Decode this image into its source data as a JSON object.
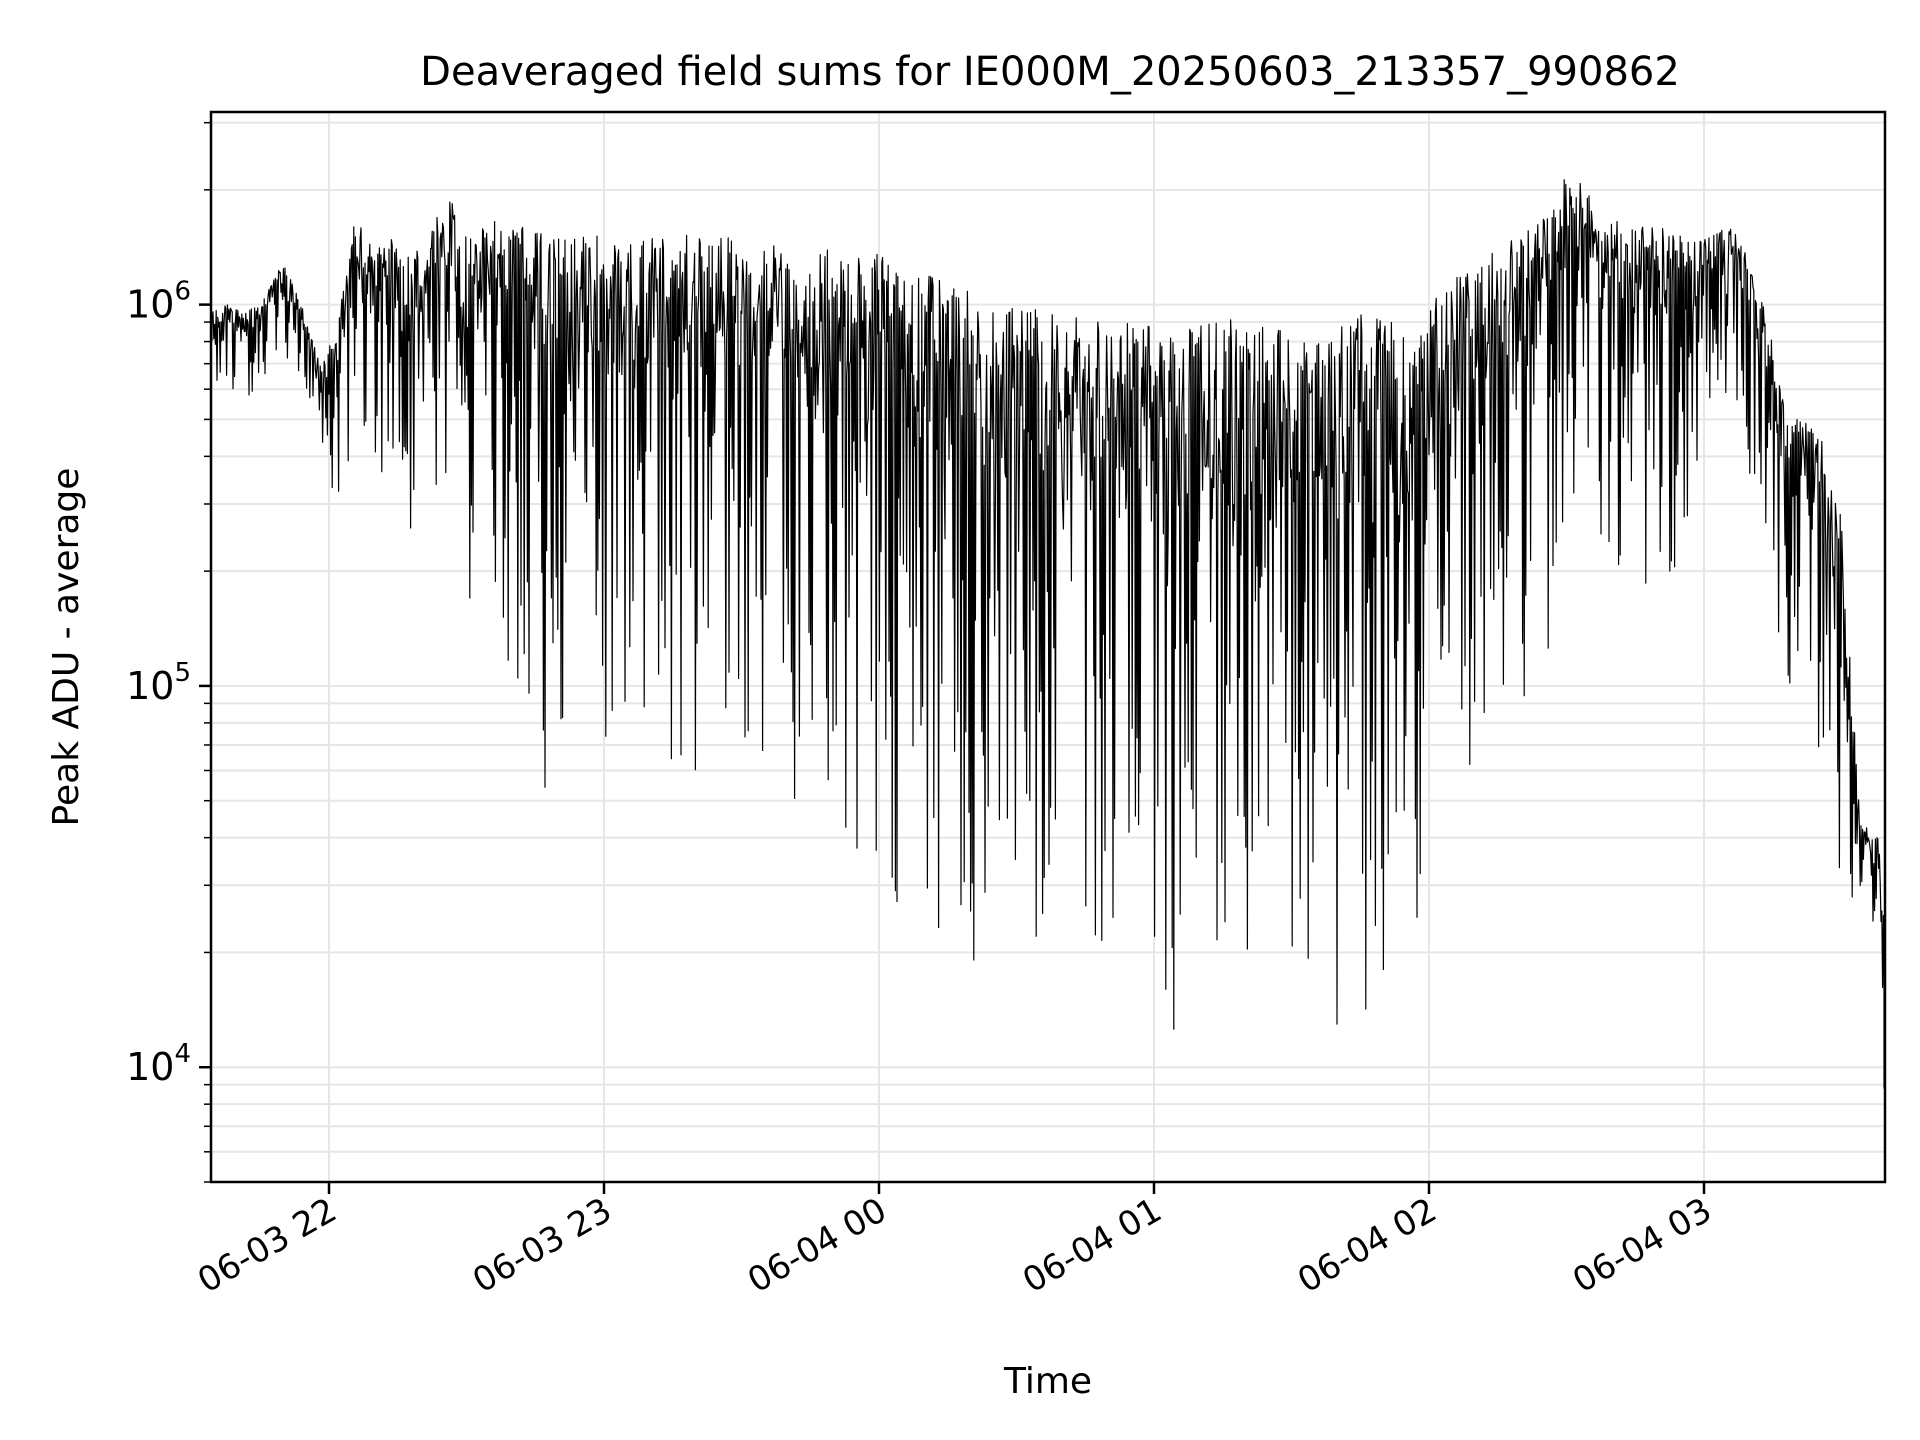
{
  "chart_data": {
    "type": "line",
    "title": "Deaveraged field sums for IE000M_20250603_213357_990862",
    "xlabel": "Time",
    "ylabel": "Peak ADU - average",
    "yscale": "log",
    "xlim": [
      "06-03 21:34",
      "06-04 03:40"
    ],
    "ylim": [
      5000,
      3200000
    ],
    "grid": true,
    "line_color": "#000000",
    "grid_color": "#e6e6e6",
    "x_ticks": [
      {
        "label": "06-03 22",
        "time": "06-03 22:00"
      },
      {
        "label": "06-03 23",
        "time": "06-03 23:00"
      },
      {
        "label": "06-04 00",
        "time": "06-04 00:00"
      },
      {
        "label": "06-04 01",
        "time": "06-04 01:00"
      },
      {
        "label": "06-04 02",
        "time": "06-04 02:00"
      },
      {
        "label": "06-04 03",
        "time": "06-04 03:00"
      }
    ],
    "y_ticks": [
      {
        "base": "10",
        "exp": "4",
        "value": 10000
      },
      {
        "base": "10",
        "exp": "5",
        "value": 100000
      },
      {
        "base": "10",
        "exp": "6",
        "value": 1000000
      }
    ],
    "series": [
      {
        "x": [
          "06-03 21:34",
          "06-03 21:38",
          "06-03 21:42",
          "06-03 21:46",
          "06-03 21:50",
          "06-03 21:54",
          "06-03 21:58",
          "06-03 22:02",
          "06-03 22:06",
          "06-03 22:10",
          "06-03 22:14",
          "06-03 22:18",
          "06-03 22:22",
          "06-03 22:26",
          "06-03 22:30",
          "06-03 22:34",
          "06-03 22:38",
          "06-03 22:42",
          "06-03 22:46",
          "06-03 22:50",
          "06-03 22:54",
          "06-03 22:58",
          "06-03 23:02",
          "06-03 23:06",
          "06-03 23:10",
          "06-03 23:14",
          "06-03 23:18",
          "06-03 23:22",
          "06-03 23:26",
          "06-03 23:30",
          "06-03 23:34",
          "06-03 23:38",
          "06-03 23:42",
          "06-03 23:46",
          "06-03 23:50",
          "06-03 23:54",
          "06-03 23:58",
          "06-04 00:02",
          "06-04 00:06",
          "06-04 00:10",
          "06-04 00:14",
          "06-04 00:18",
          "06-04 00:22",
          "06-04 00:26",
          "06-04 00:30",
          "06-04 00:34",
          "06-04 00:38",
          "06-04 00:42",
          "06-04 00:46",
          "06-04 00:50",
          "06-04 00:54",
          "06-04 00:58",
          "06-04 01:02",
          "06-04 01:06",
          "06-04 01:10",
          "06-04 01:14",
          "06-04 01:18",
          "06-04 01:22",
          "06-04 01:26",
          "06-04 01:30",
          "06-04 01:34",
          "06-04 01:38",
          "06-04 01:42",
          "06-04 01:46",
          "06-04 01:50",
          "06-04 01:54",
          "06-04 01:58",
          "06-04 02:02",
          "06-04 02:06",
          "06-04 02:10",
          "06-04 02:14",
          "06-04 02:18",
          "06-04 02:22",
          "06-04 02:26",
          "06-04 02:30",
          "06-04 02:34",
          "06-04 02:38",
          "06-04 02:42",
          "06-04 02:46",
          "06-04 02:50",
          "06-04 02:54",
          "06-04 02:58",
          "06-04 03:02",
          "06-04 03:06",
          "06-04 03:10",
          "06-04 03:14",
          "06-04 03:18",
          "06-04 03:22",
          "06-04 03:26",
          "06-04 03:30",
          "06-04 03:34",
          "06-04 03:38",
          "06-04 03:40"
        ],
        "upper": [
          950000,
          1000000,
          950000,
          1050000,
          1300000,
          1000000,
          700000,
          900000,
          1800000,
          1400000,
          1500000,
          1300000,
          1600000,
          2000000,
          1500000,
          1600000,
          1700000,
          1600000,
          1550000,
          1500000,
          1550000,
          1600000,
          1450000,
          1450000,
          1500000,
          1500000,
          1550000,
          1500000,
          1550000,
          1500000,
          1400000,
          1450000,
          1450000,
          1400000,
          1400000,
          1300000,
          1400000,
          1300000,
          1250000,
          1200000,
          1150000,
          1100000,
          1050000,
          1000000,
          1000000,
          980000,
          950000,
          950000,
          950000,
          920000,
          900000,
          880000,
          870000,
          850000,
          880000,
          900000,
          920000,
          900000,
          880000,
          880000,
          850000,
          850000,
          900000,
          950000,
          900000,
          900000,
          950000,
          1050000,
          1200000,
          1300000,
          1400000,
          1500000,
          1600000,
          1700000,
          2200000,
          2100000,
          1700000,
          1650000,
          1600000,
          1600000,
          1550000,
          1500000,
          1550000,
          1600000,
          1300000,
          900000,
          500000,
          500000,
          450000,
          300000,
          45000,
          40000,
          20000
        ],
        "lower": [
          550000,
          600000,
          550000,
          650000,
          700000,
          600000,
          380000,
          300000,
          400000,
          300000,
          250000,
          200000,
          200000,
          180000,
          150000,
          250000,
          120000,
          70000,
          40000,
          50000,
          80000,
          90000,
          60000,
          70000,
          65000,
          65000,
          60000,
          55000,
          60000,
          55000,
          45000,
          40000,
          38000,
          40000,
          40000,
          35000,
          30000,
          25000,
          25000,
          25000,
          20000,
          18000,
          18000,
          18000,
          16000,
          15000,
          14000,
          14000,
          14000,
          14000,
          13000,
          12000,
          11000,
          11000,
          12000,
          13000,
          14000,
          15000,
          16000,
          17000,
          14000,
          13000,
          12000,
          12000,
          14000,
          16000,
          20000,
          30000,
          40000,
          50000,
          70000,
          80000,
          100000,
          120000,
          200000,
          200000,
          220000,
          200000,
          180000,
          180000,
          200000,
          250000,
          400000,
          400000,
          350000,
          200000,
          80000,
          150000,
          50000,
          25000,
          30000,
          20000,
          7000
        ]
      }
    ]
  }
}
